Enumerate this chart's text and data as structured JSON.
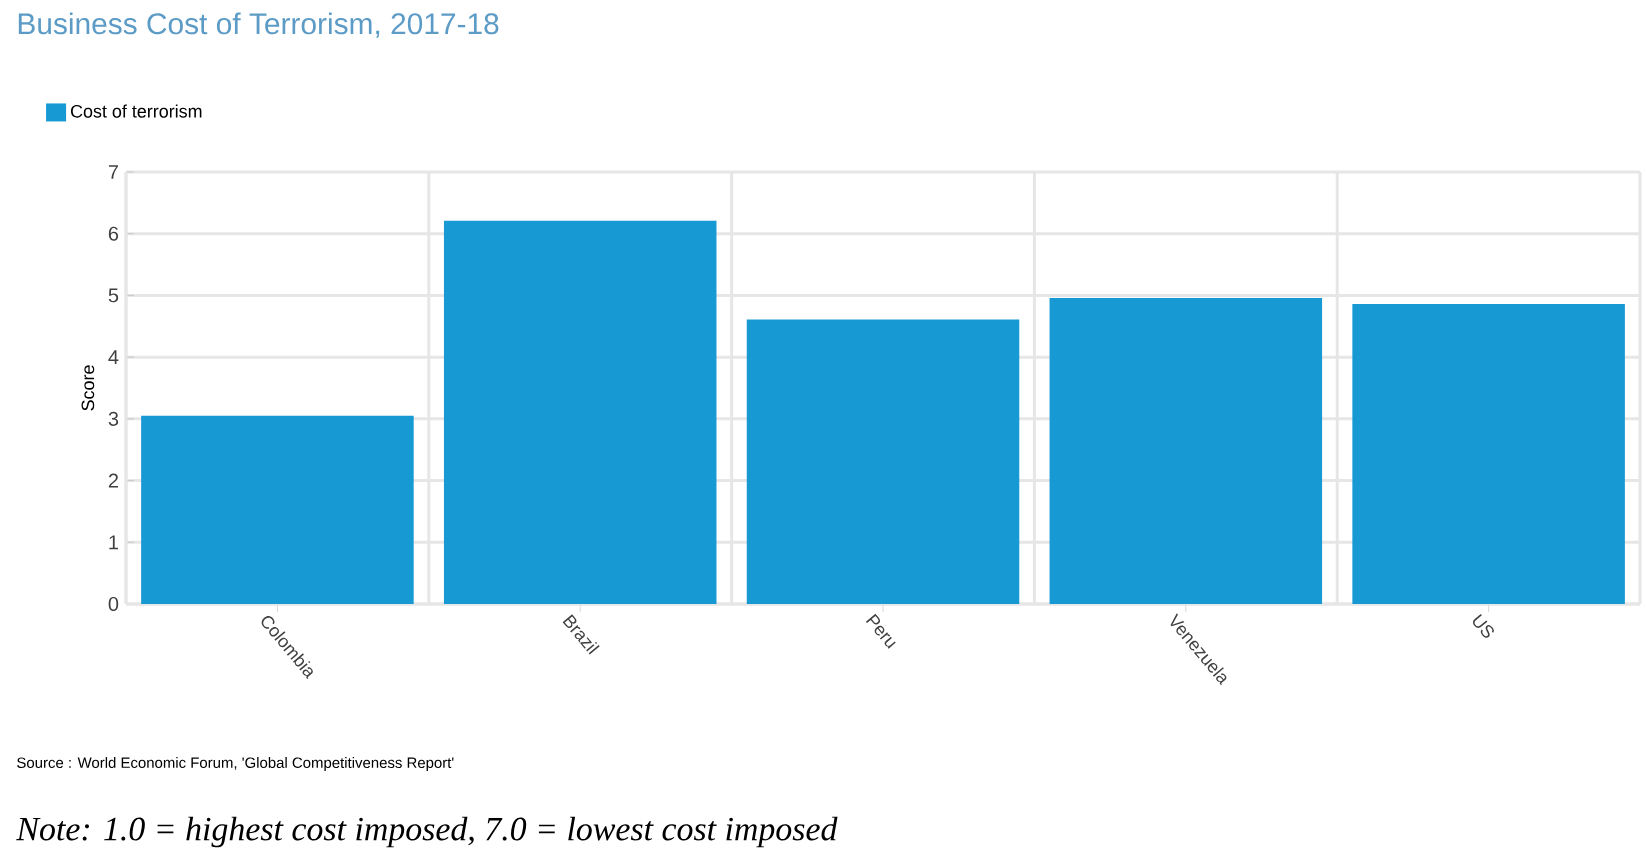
{
  "chart_data": {
    "type": "bar",
    "title": "Business Cost of Terrorism, 2017-18",
    "ylabel": "Score",
    "categories": [
      "Colombia",
      "Brazil",
      "Peru",
      "Venezuela",
      "US"
    ],
    "series": [
      {
        "name": "Cost of terrorism",
        "color": "#1799d3",
        "values": [
          3.05,
          6.21,
          4.61,
          4.96,
          4.86
        ]
      }
    ],
    "ylim": [
      0,
      7
    ],
    "yticks": [
      0,
      1,
      2,
      3,
      4,
      5,
      6,
      7
    ],
    "grid": true,
    "legend": "top left",
    "annotations": [
      "Source : World Economic Forum, 'Global Competitiveness Report'",
      "Note: 1.0 = highest cost imposed, 7.0 = lowest cost imposed"
    ]
  }
}
